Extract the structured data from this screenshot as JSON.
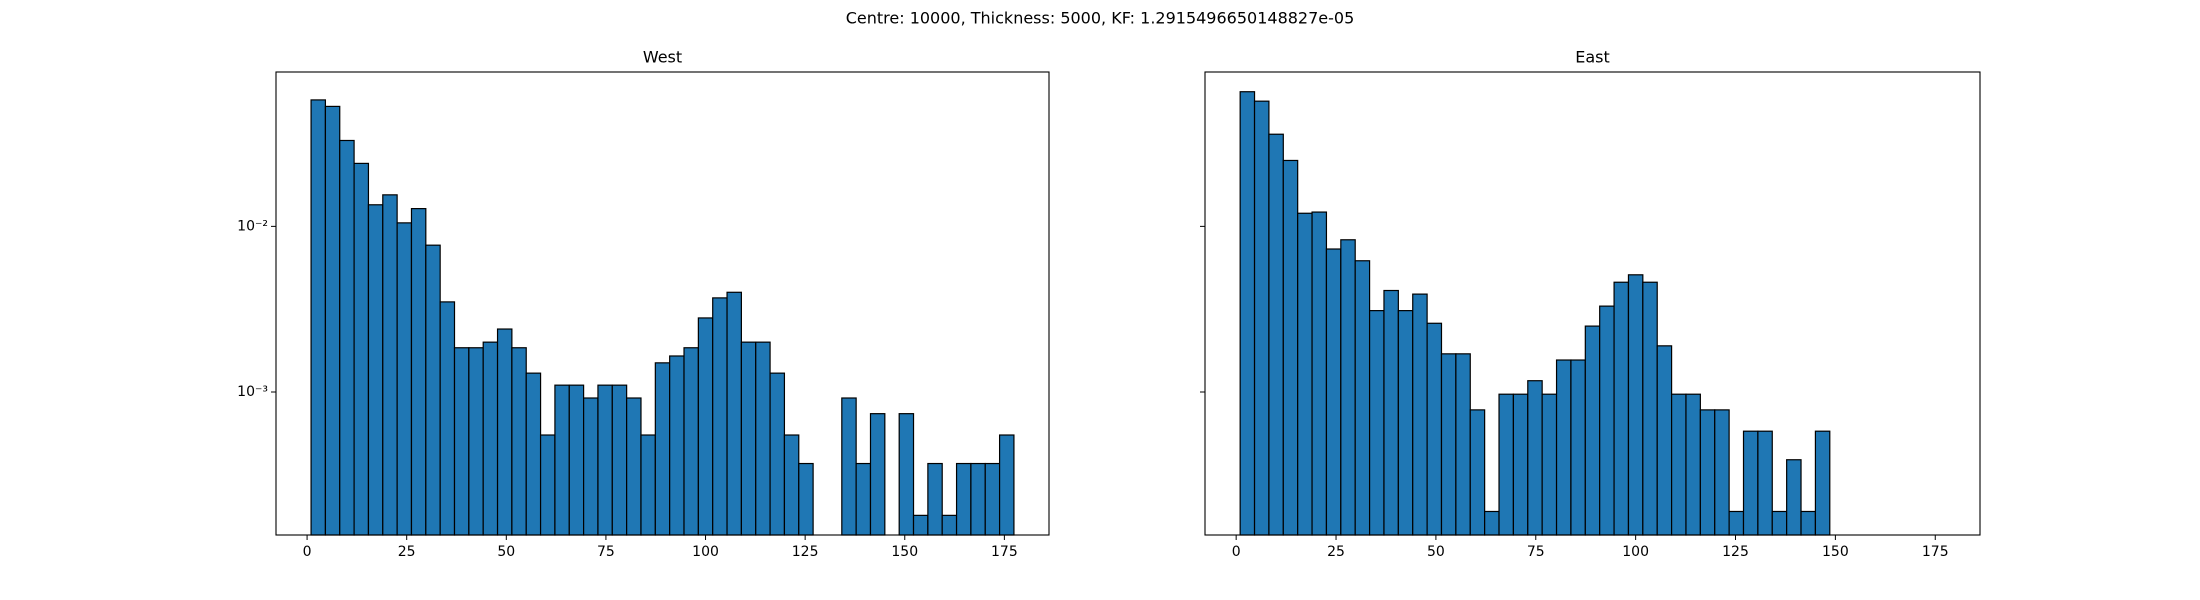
{
  "title": "Centre: 10000, Thickness: 5000, KF: 1.2915496650148827e-05",
  "chart_data": [
    {
      "type": "histogram",
      "title": "West",
      "color": "#1f77b4",
      "edgecolor": "#000000",
      "log_y": true,
      "bins": [
        1,
        4.6,
        8.2,
        11.8,
        15.4,
        19,
        22.6,
        26.2,
        29.8,
        33.4,
        37,
        40.6,
        44.2,
        47.8,
        51.4,
        55,
        58.6,
        62.2,
        65.8,
        69.4,
        73,
        76.6,
        80.2,
        83.8,
        87.4,
        91,
        94.6,
        98.2,
        101.8,
        105.4,
        109,
        112.6,
        116.2,
        119.8,
        123.4,
        127,
        130.6,
        134.2,
        137.8,
        141.4,
        145,
        148.6,
        152.2,
        155.8,
        159.4,
        163,
        166.6,
        170.2,
        173.8,
        177.4
      ],
      "values": [
        0.058,
        0.053,
        0.033,
        0.024,
        0.0135,
        0.0155,
        0.0105,
        0.0128,
        0.0077,
        0.0035,
        0.00185,
        0.00185,
        0.002,
        0.0024,
        0.00185,
        0.0013,
        0.00055,
        0.0011,
        0.0011,
        0.00092,
        0.0011,
        0.0011,
        0.00092,
        0.00055,
        0.0015,
        0.00165,
        0.00185,
        0.0028,
        0.0037,
        0.004,
        0.002,
        0.002,
        0.0013,
        0.00055,
        0.00037,
        0,
        0,
        0.00092,
        0.00037,
        0.00074,
        0,
        0.00074,
        0.00018,
        0.00037,
        0.00018,
        0.00037,
        0.00037,
        0.00037,
        0.00055
      ],
      "xlim": [
        -7.8,
        186.2
      ],
      "xticks": [
        0,
        25,
        50,
        75,
        100,
        125,
        150,
        175
      ],
      "ylim": [
        0.000137,
        0.0855
      ],
      "yticks": [
        {
          "value": 0.001,
          "label": "10⁻³"
        },
        {
          "value": 0.01,
          "label": "10⁻²"
        }
      ]
    },
    {
      "type": "histogram",
      "title": "East",
      "color": "#1f77b4",
      "edgecolor": "#000000",
      "log_y": true,
      "bins": [
        1,
        4.6,
        8.2,
        11.8,
        15.4,
        19,
        22.6,
        26.2,
        29.8,
        33.4,
        37,
        40.6,
        44.2,
        47.8,
        51.4,
        55,
        58.6,
        62.2,
        65.8,
        69.4,
        73,
        76.6,
        80.2,
        83.8,
        87.4,
        91,
        94.6,
        98.2,
        101.8,
        105.4,
        109,
        112.6,
        116.2,
        119.8,
        123.4,
        127,
        130.6,
        134.2,
        137.8,
        141.4,
        145,
        148.6
      ],
      "values": [
        0.065,
        0.057,
        0.036,
        0.025,
        0.012,
        0.0122,
        0.0073,
        0.0083,
        0.0062,
        0.0031,
        0.0041,
        0.0031,
        0.0039,
        0.0026,
        0.0017,
        0.0017,
        0.00078,
        0.00019,
        0.00097,
        0.00097,
        0.00117,
        0.00097,
        0.00156,
        0.00156,
        0.0025,
        0.0033,
        0.0046,
        0.0051,
        0.0046,
        0.0019,
        0.00097,
        0.00097,
        0.00078,
        0.00078,
        0.00019,
        0.00058,
        0.00058,
        0.00019,
        0.00039,
        0.00019,
        0.00058
      ],
      "xlim": [
        -7.8,
        186.2
      ],
      "xticks": [
        0,
        25,
        50,
        75,
        100,
        125,
        150,
        175
      ],
      "ylim": [
        0.000137,
        0.0855
      ],
      "yticks": [
        0.001,
        0.01
      ]
    }
  ]
}
